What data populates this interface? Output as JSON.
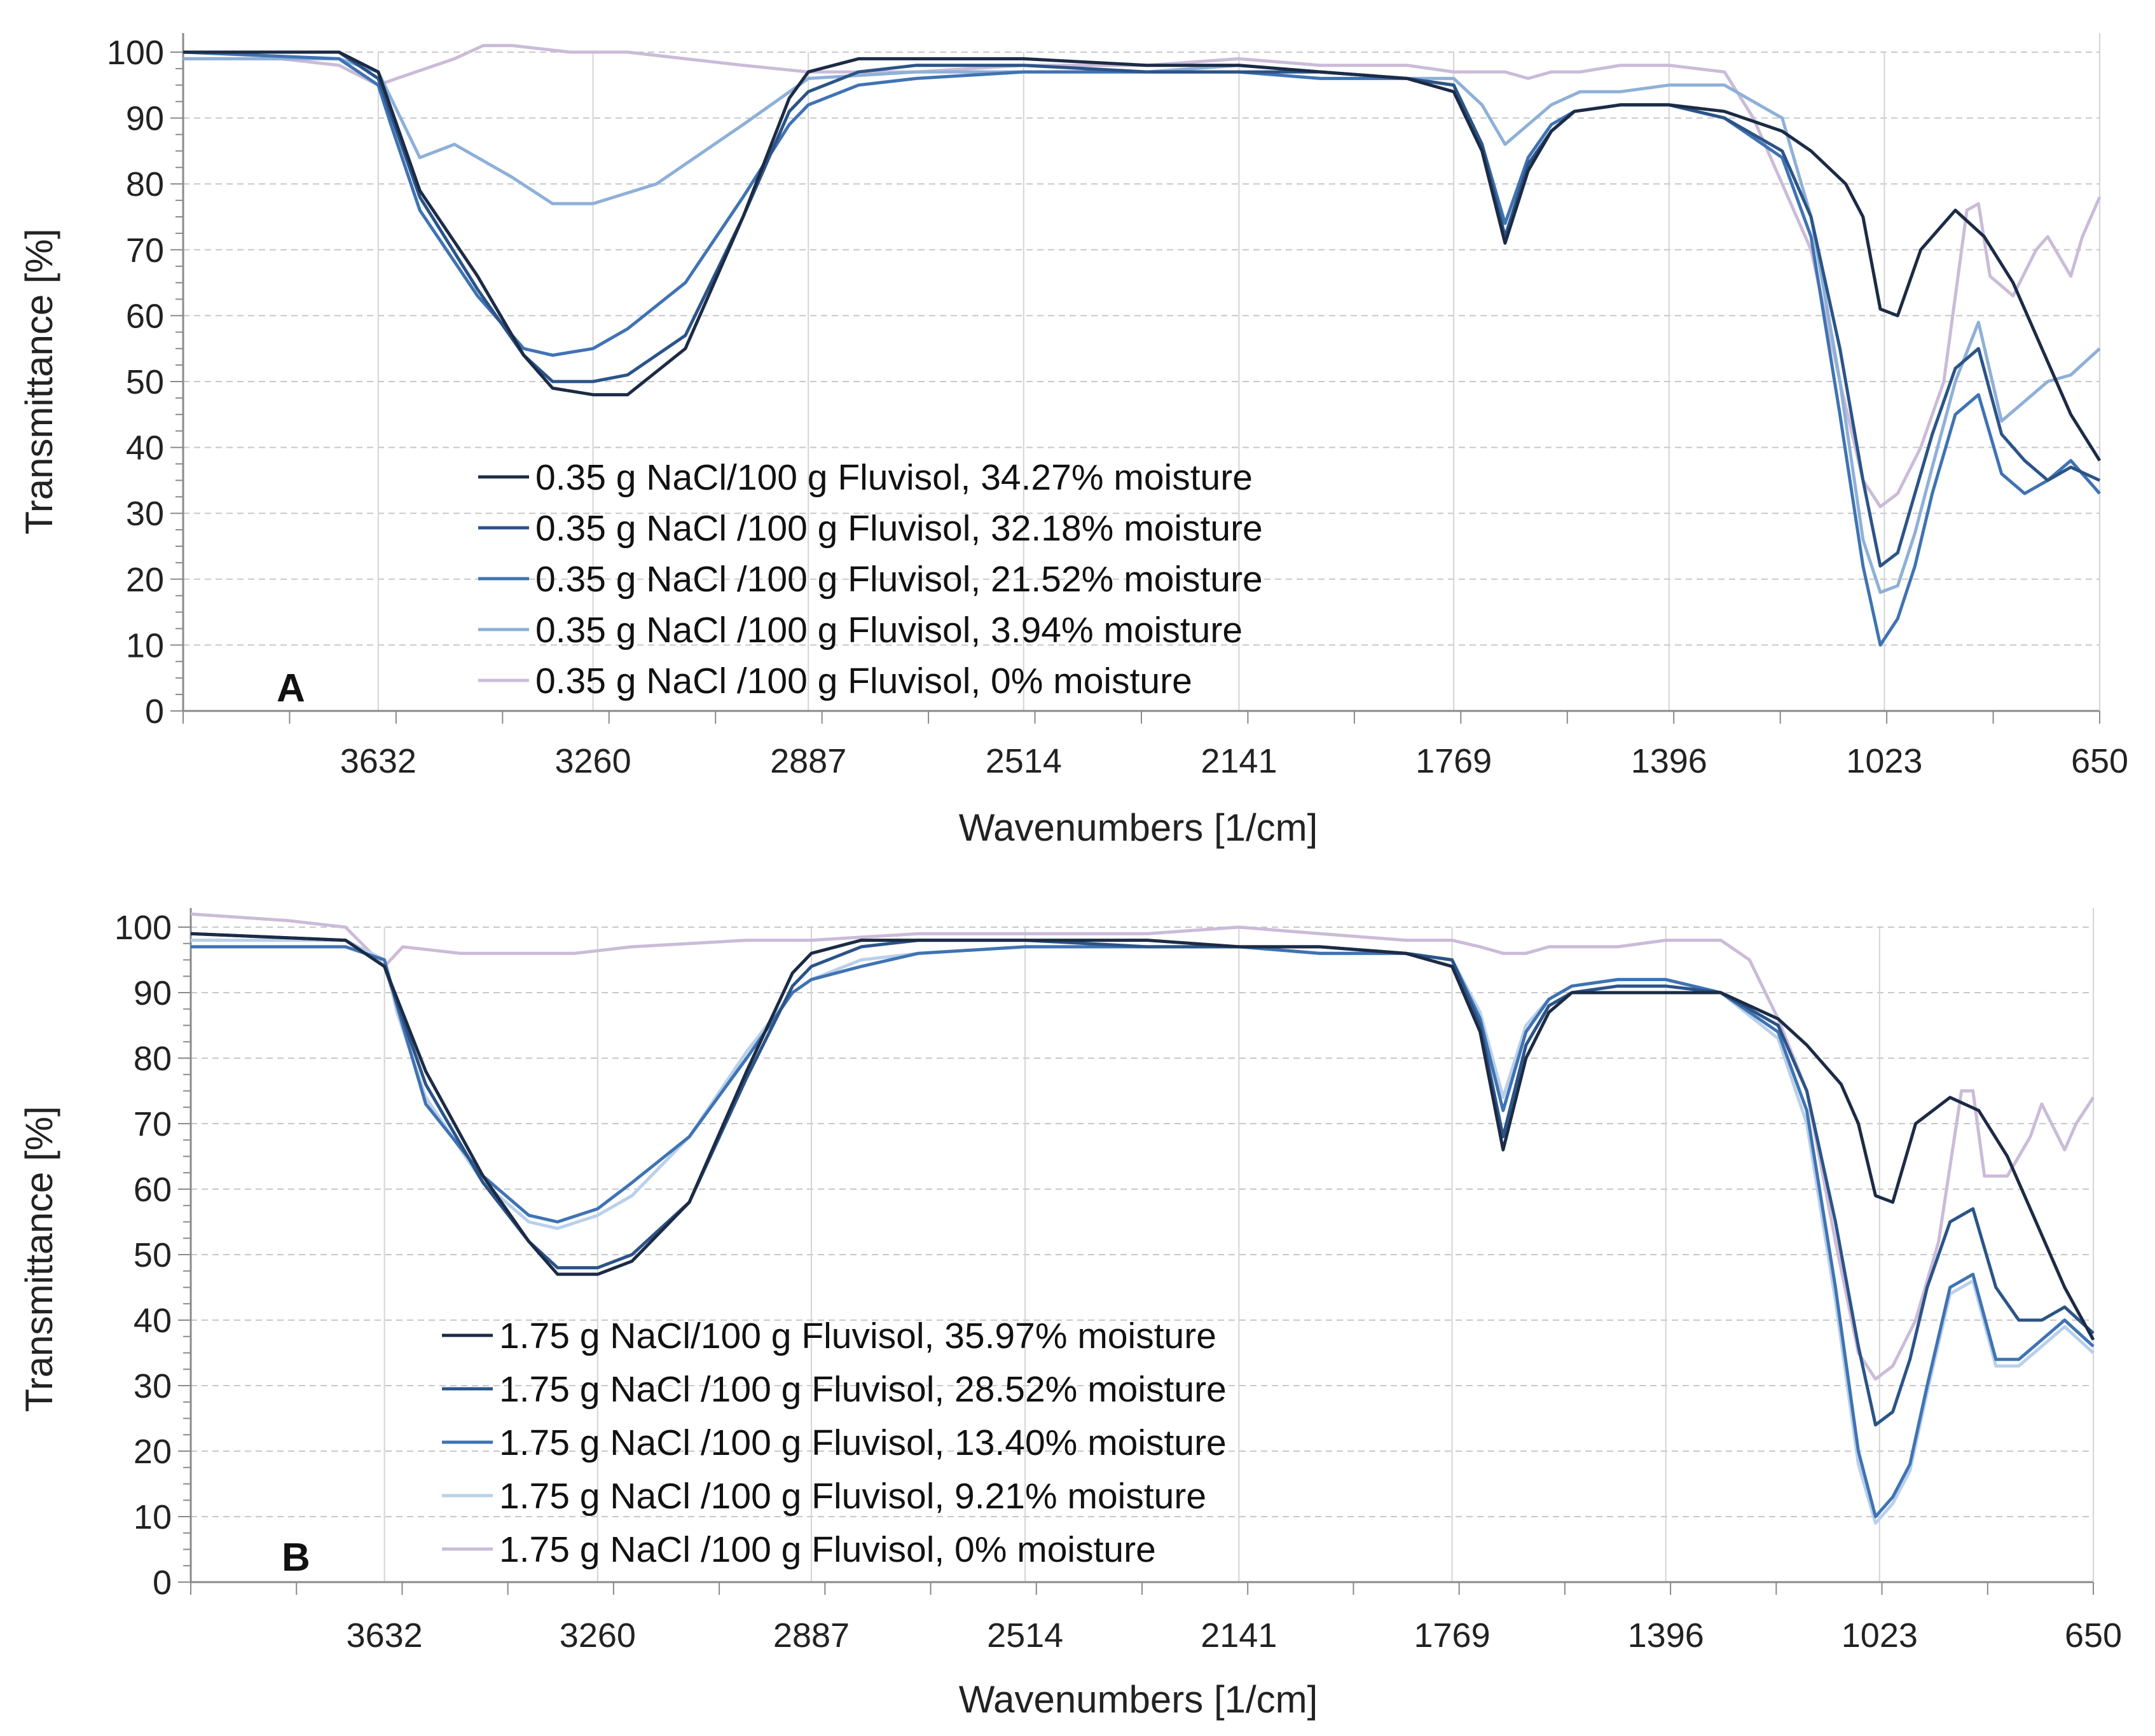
{
  "chart_data": [
    {
      "type": "line",
      "panel_label": "A",
      "xlabel": "Wavenumbers [1/cm]",
      "ylabel": "Transmittance [%]",
      "xlim": [
        3970,
        650
      ],
      "ylim": [
        0,
        100
      ],
      "x_ticks": [
        "3632",
        "3260",
        "2887",
        "2514",
        "2141",
        "1769",
        "1396",
        "1023",
        "650"
      ],
      "y_ticks": [
        "0",
        "10",
        "20",
        "30",
        "40",
        "50",
        "60",
        "70",
        "80",
        "90",
        "100"
      ],
      "grid": true,
      "legend_position": "lower-left",
      "series": [
        {
          "name": "0.35 g NaCl/100 g Fluvisol, 34.27% moisture",
          "color": "#1c2b45",
          "x": [
            3970,
            3700,
            3632,
            3560,
            3460,
            3380,
            3330,
            3260,
            3200,
            3100,
            3000,
            2920,
            2887,
            2800,
            2700,
            2514,
            2300,
            2141,
            2000,
            1850,
            1769,
            1720,
            1680,
            1640,
            1600,
            1560,
            1480,
            1396,
            1300,
            1200,
            1150,
            1090,
            1060,
            1030,
            1000,
            960,
            900,
            850,
            800,
            750,
            700,
            650
          ],
          "y": [
            100,
            100,
            97,
            79,
            66,
            54,
            49,
            48,
            48,
            55,
            75,
            93,
            97,
            99,
            99,
            99,
            98,
            98,
            97,
            96,
            94,
            85,
            71,
            82,
            88,
            91,
            92,
            92,
            91,
            88,
            85,
            80,
            75,
            61,
            60,
            70,
            76,
            72,
            65,
            55,
            45,
            38
          ]
        },
        {
          "name": "0.35 g NaCl /100 g Fluvisol, 32.18% moisture",
          "color": "#2b5488",
          "x": [
            3970,
            3700,
            3632,
            3560,
            3460,
            3380,
            3330,
            3260,
            3200,
            3100,
            3000,
            2920,
            2887,
            2800,
            2700,
            2514,
            2300,
            2141,
            2000,
            1850,
            1769,
            1720,
            1680,
            1640,
            1600,
            1560,
            1480,
            1396,
            1300,
            1200,
            1150,
            1100,
            1060,
            1030,
            1000,
            970,
            940,
            900,
            860,
            820,
            780,
            740,
            700,
            650
          ],
          "y": [
            100,
            100,
            96,
            78,
            64,
            54,
            50,
            50,
            51,
            57,
            75,
            91,
            94,
            97,
            98,
            98,
            97,
            97,
            97,
            96,
            95,
            86,
            72,
            83,
            88,
            91,
            92,
            92,
            90,
            85,
            75,
            55,
            35,
            22,
            24,
            33,
            42,
            52,
            55,
            42,
            38,
            35,
            37,
            35
          ]
        },
        {
          "name": "0.35 g NaCl /100 g Fluvisol, 21.52% moisture",
          "color": "#3f73b3",
          "x": [
            3970,
            3700,
            3632,
            3610,
            3560,
            3460,
            3380,
            3330,
            3260,
            3200,
            3100,
            3000,
            2920,
            2887,
            2800,
            2700,
            2514,
            2300,
            2141,
            2000,
            1850,
            1769,
            1720,
            1680,
            1640,
            1600,
            1560,
            1480,
            1396,
            1300,
            1200,
            1150,
            1100,
            1060,
            1030,
            1000,
            970,
            940,
            900,
            860,
            820,
            780,
            740,
            700,
            650
          ],
          "y": [
            100,
            99,
            95,
            89,
            76,
            63,
            55,
            54,
            55,
            58,
            65,
            78,
            89,
            92,
            95,
            96,
            97,
            97,
            97,
            96,
            96,
            95,
            86,
            74,
            84,
            89,
            91,
            92,
            92,
            90,
            84,
            72,
            45,
            22,
            10,
            14,
            22,
            33,
            45,
            48,
            36,
            33,
            35,
            38,
            33
          ]
        },
        {
          "name": "0.35 g NaCl /100 g Fluvisol, 3.94% moisture",
          "color": "#8eb0d8",
          "x": [
            3970,
            3700,
            3632,
            3560,
            3500,
            3400,
            3330,
            3260,
            3150,
            3000,
            2887,
            2700,
            2514,
            2300,
            2141,
            2000,
            1850,
            1769,
            1720,
            1680,
            1640,
            1600,
            1550,
            1480,
            1396,
            1300,
            1200,
            1150,
            1100,
            1060,
            1030,
            1000,
            970,
            940,
            900,
            860,
            820,
            780,
            740,
            700,
            650
          ],
          "y": [
            99,
            99,
            97,
            84,
            86,
            81,
            77,
            77,
            80,
            89,
            96,
            97,
            97,
            97,
            98,
            97,
            96,
            96,
            92,
            86,
            89,
            92,
            94,
            94,
            95,
            95,
            90,
            75,
            50,
            26,
            18,
            19,
            27,
            37,
            50,
            59,
            44,
            47,
            50,
            51,
            55
          ]
        },
        {
          "name": "0.35 g NaCl /100 g Fluvisol, 0% moisture",
          "color": "#cbbbd8",
          "x": [
            3970,
            3800,
            3700,
            3632,
            3600,
            3500,
            3450,
            3400,
            3300,
            3200,
            3100,
            3000,
            2887,
            2700,
            2514,
            2300,
            2141,
            2000,
            1850,
            1769,
            1720,
            1680,
            1640,
            1600,
            1550,
            1480,
            1396,
            1300,
            1250,
            1200,
            1150,
            1100,
            1060,
            1030,
            1000,
            960,
            920,
            880,
            860,
            840,
            800,
            760,
            740,
            700,
            680,
            650
          ],
          "y": [
            99,
            99,
            98,
            95,
            96,
            99,
            101,
            101,
            100,
            100,
            99,
            98,
            97,
            97,
            98,
            98,
            99,
            98,
            98,
            97,
            97,
            97,
            96,
            97,
            97,
            98,
            98,
            97,
            90,
            80,
            70,
            50,
            35,
            31,
            33,
            40,
            50,
            76,
            77,
            66,
            63,
            70,
            72,
            66,
            72,
            78
          ]
        }
      ]
    },
    {
      "type": "line",
      "panel_label": "B",
      "xlabel": "Wavenumbers [1/cm]",
      "ylabel": "Transmittance [%]",
      "xlim": [
        3970,
        650
      ],
      "ylim": [
        0,
        100
      ],
      "x_ticks": [
        "3632",
        "3260",
        "2887",
        "2514",
        "2141",
        "1769",
        "1396",
        "1023",
        "650"
      ],
      "y_ticks": [
        "0",
        "10",
        "20",
        "30",
        "40",
        "50",
        "60",
        "70",
        "80",
        "90",
        "100"
      ],
      "grid": true,
      "legend_position": "lower-left",
      "series": [
        {
          "name": "1.75 g NaCl/100 g Fluvisol, 35.97% moisture",
          "color": "#1c2b45",
          "x": [
            3970,
            3700,
            3632,
            3560,
            3460,
            3380,
            3330,
            3260,
            3200,
            3100,
            3000,
            2920,
            2887,
            2800,
            2700,
            2514,
            2300,
            2141,
            2000,
            1850,
            1769,
            1720,
            1680,
            1640,
            1600,
            1560,
            1480,
            1396,
            1300,
            1200,
            1150,
            1090,
            1060,
            1030,
            1000,
            960,
            900,
            850,
            800,
            750,
            700,
            650
          ],
          "y": [
            99,
            98,
            94,
            78,
            62,
            52,
            47,
            47,
            49,
            58,
            78,
            93,
            96,
            98,
            98,
            98,
            98,
            97,
            97,
            96,
            94,
            84,
            66,
            80,
            87,
            90,
            90,
            90,
            90,
            86,
            82,
            76,
            70,
            59,
            58,
            70,
            74,
            72,
            65,
            55,
            45,
            37
          ]
        },
        {
          "name": "1.75 g NaCl /100 g Fluvisol, 28.52% moisture",
          "color": "#2b5488",
          "x": [
            3970,
            3700,
            3632,
            3560,
            3460,
            3380,
            3330,
            3260,
            3200,
            3100,
            3000,
            2920,
            2887,
            2800,
            2700,
            2514,
            2300,
            2141,
            2000,
            1850,
            1769,
            1720,
            1680,
            1640,
            1600,
            1560,
            1480,
            1396,
            1300,
            1200,
            1150,
            1100,
            1060,
            1030,
            1000,
            970,
            940,
            900,
            860,
            820,
            780,
            740,
            700,
            650
          ],
          "y": [
            99,
            98,
            94,
            76,
            61,
            52,
            48,
            48,
            50,
            58,
            77,
            91,
            94,
            97,
            98,
            98,
            97,
            97,
            97,
            96,
            95,
            85,
            68,
            82,
            88,
            90,
            91,
            91,
            90,
            85,
            75,
            55,
            36,
            24,
            26,
            34,
            45,
            55,
            57,
            45,
            40,
            40,
            42,
            38
          ]
        },
        {
          "name": "1.75 g NaCl /100 g Fluvisol, 13.40% moisture",
          "color": "#3f73b3",
          "x": [
            3970,
            3700,
            3632,
            3610,
            3560,
            3460,
            3380,
            3330,
            3260,
            3200,
            3100,
            3000,
            2920,
            2887,
            2800,
            2700,
            2514,
            2300,
            2141,
            2000,
            1850,
            1769,
            1720,
            1680,
            1640,
            1600,
            1560,
            1480,
            1396,
            1300,
            1200,
            1150,
            1100,
            1060,
            1030,
            1000,
            970,
            940,
            900,
            860,
            820,
            780,
            740,
            700,
            650
          ],
          "y": [
            97,
            97,
            95,
            88,
            73,
            62,
            56,
            55,
            57,
            61,
            68,
            80,
            90,
            92,
            94,
            96,
            97,
            97,
            97,
            96,
            96,
            95,
            86,
            72,
            84,
            89,
            91,
            92,
            92,
            90,
            84,
            72,
            45,
            20,
            10,
            13,
            18,
            30,
            45,
            47,
            34,
            34,
            37,
            40,
            36
          ]
        },
        {
          "name": "1.75 g NaCl /100 g Fluvisol, 9.21% moisture",
          "color": "#b9d0ea",
          "x": [
            3970,
            3700,
            3632,
            3610,
            3560,
            3460,
            3380,
            3330,
            3260,
            3200,
            3100,
            3000,
            2920,
            2887,
            2800,
            2700,
            2514,
            2300,
            2141,
            2000,
            1850,
            1769,
            1720,
            1680,
            1640,
            1600,
            1560,
            1480,
            1396,
            1300,
            1200,
            1150,
            1100,
            1060,
            1030,
            1000,
            970,
            940,
            900,
            860,
            820,
            780,
            740,
            700,
            650
          ],
          "y": [
            98,
            98,
            95,
            87,
            74,
            61,
            55,
            54,
            56,
            59,
            68,
            81,
            90,
            92,
            95,
            96,
            97,
            97,
            97,
            96,
            96,
            95,
            87,
            74,
            85,
            89,
            91,
            92,
            92,
            90,
            83,
            70,
            43,
            18,
            9,
            12,
            17,
            29,
            44,
            46,
            33,
            33,
            36,
            39,
            35
          ]
        },
        {
          "name": "1.75 g NaCl /100 g Fluvisol, 0% moisture",
          "color": "#cbbbd8",
          "x": [
            3970,
            3800,
            3700,
            3632,
            3600,
            3500,
            3400,
            3300,
            3200,
            3000,
            2887,
            2700,
            2514,
            2300,
            2141,
            2000,
            1850,
            1769,
            1720,
            1680,
            1640,
            1600,
            1550,
            1480,
            1396,
            1300,
            1250,
            1200,
            1150,
            1100,
            1060,
            1030,
            1000,
            960,
            920,
            880,
            860,
            840,
            800,
            760,
            740,
            700,
            680,
            650
          ],
          "y": [
            102,
            101,
            100,
            94,
            97,
            96,
            96,
            96,
            97,
            98,
            98,
            99,
            99,
            99,
            100,
            99,
            98,
            98,
            97,
            96,
            96,
            97,
            97,
            97,
            98,
            98,
            95,
            86,
            75,
            52,
            35,
            31,
            33,
            40,
            52,
            75,
            75,
            62,
            62,
            68,
            73,
            66,
            70,
            74
          ]
        }
      ]
    }
  ]
}
